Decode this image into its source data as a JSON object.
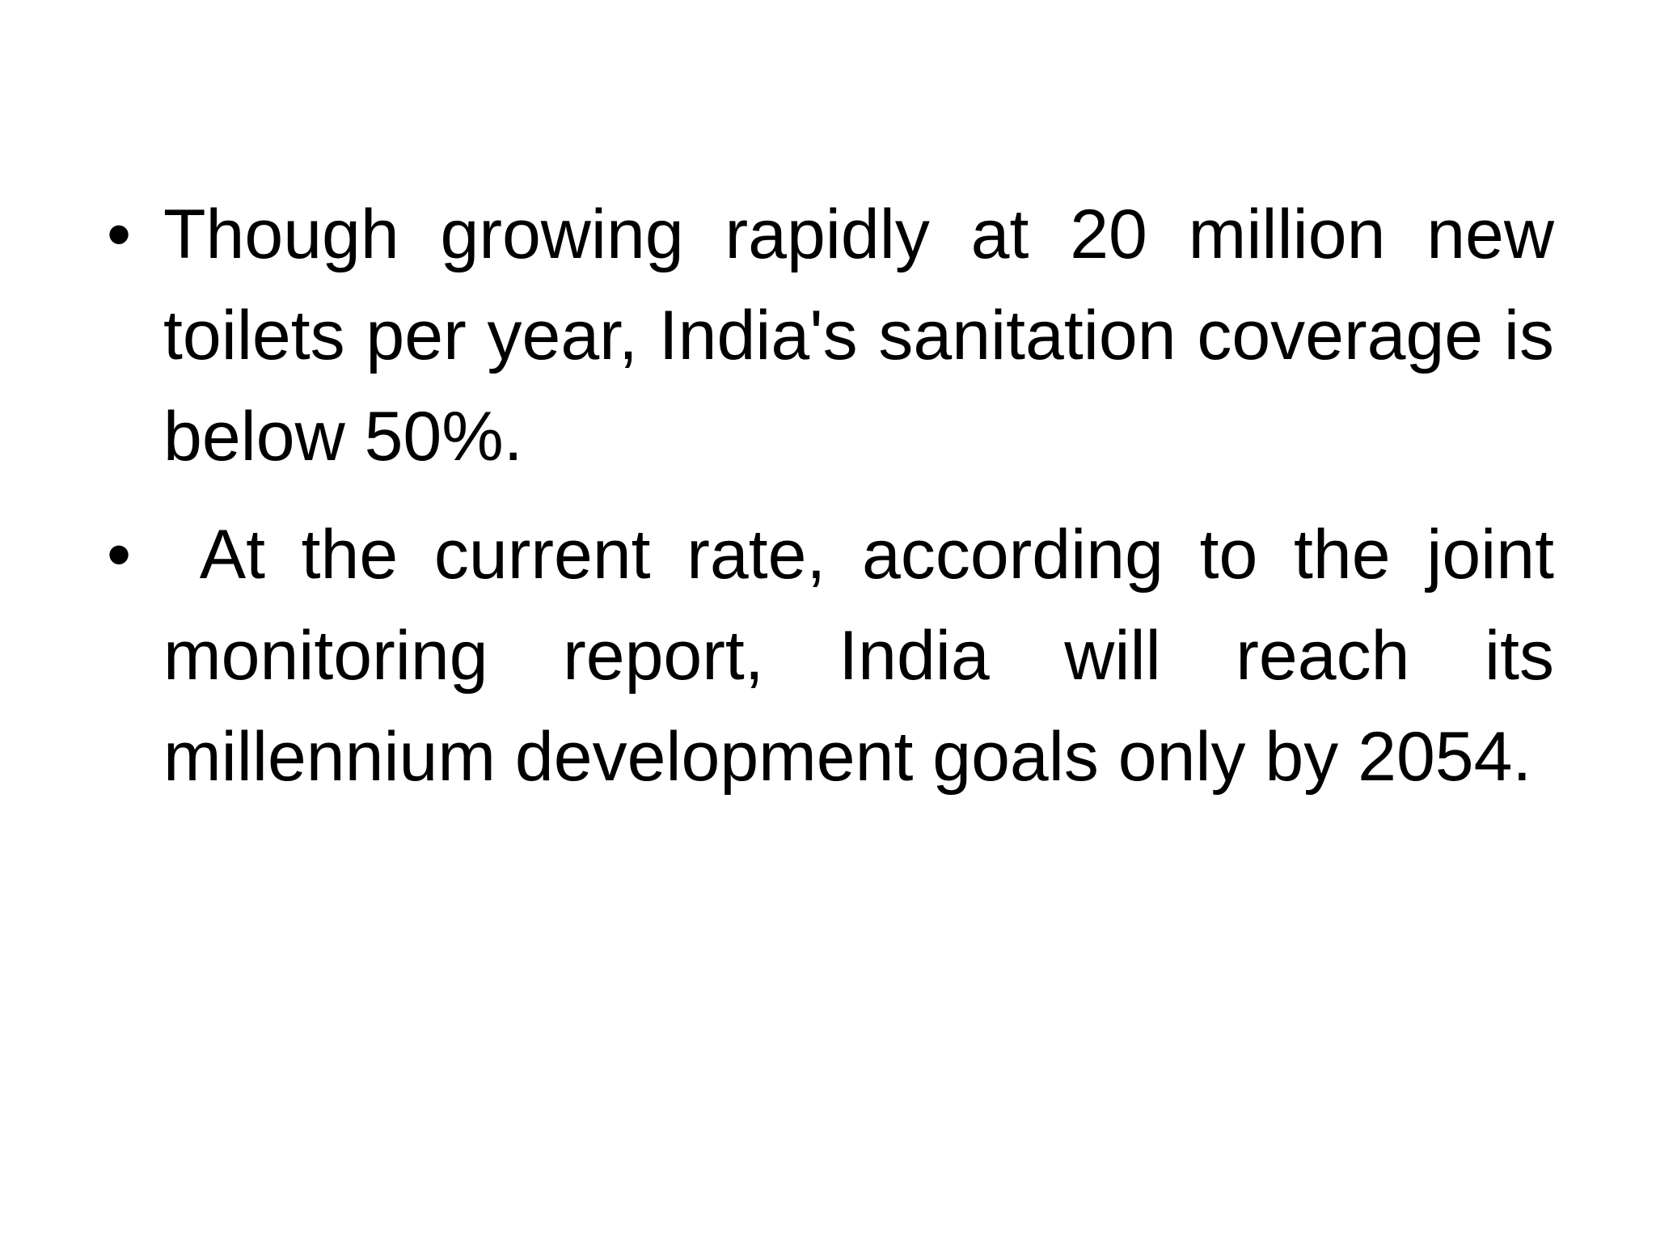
{
  "bullets": [
    "Though growing rapidly at 20 million new toilets per year, India's sanitation coverage is below 50%.",
    " At the current rate, according to the joint monitoring report, India will reach its millennium development goals only by 2054."
  ]
}
